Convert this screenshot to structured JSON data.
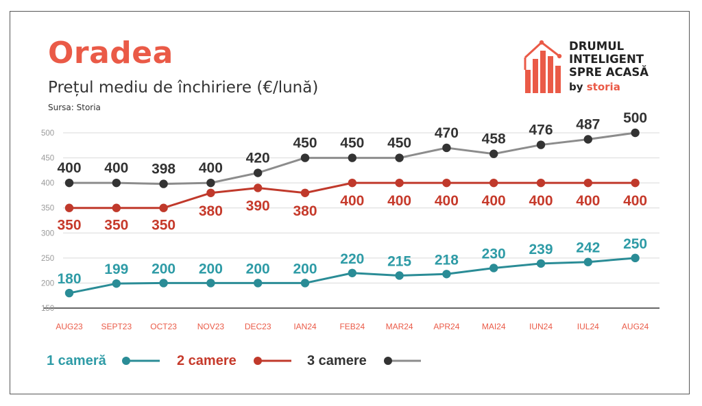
{
  "header": {
    "title": "Oradea",
    "subtitle": "Prețul mediu de închiriere (€/lună)",
    "source": "Sursa: Storia"
  },
  "logo": {
    "line1": "DRUMUL",
    "line2": "INTELIGENT",
    "line3": "SPRE ACASĂ",
    "by": "by",
    "brand": "storia",
    "icon": "house-bars-icon"
  },
  "colors": {
    "accent": "#ea5a47",
    "series_1": "#2a8c96",
    "series_2": "#c0392b",
    "series_3": "#8c8c8c",
    "label_1": "#2e9ba6",
    "label_2": "#c63a2b",
    "label_3": "#333333"
  },
  "chart_data": {
    "type": "line",
    "title": "Prețul mediu de închiriere (€/lună)",
    "xlabel": "",
    "ylabel": "",
    "categories": [
      "AUG23",
      "SEPT23",
      "OCT23",
      "NOV23",
      "DEC23",
      "IAN24",
      "FEB24",
      "MAR24",
      "APR24",
      "MAI24",
      "IUN24",
      "IUL24",
      "AUG24"
    ],
    "yticks": [
      150,
      200,
      250,
      300,
      350,
      400,
      450,
      500
    ],
    "ylim": [
      150,
      500
    ],
    "grid": true,
    "legend": "bottom-left",
    "series": [
      {
        "name": "1 cameră",
        "values": [
          180,
          199,
          200,
          200,
          200,
          200,
          220,
          215,
          218,
          230,
          239,
          242,
          250
        ]
      },
      {
        "name": "2 camere",
        "values": [
          350,
          350,
          350,
          380,
          390,
          380,
          400,
          400,
          400,
          400,
          400,
          400,
          400
        ]
      },
      {
        "name": "3 camere",
        "values": [
          400,
          400,
          398,
          400,
          420,
          450,
          450,
          450,
          470,
          458,
          476,
          487,
          500
        ]
      }
    ]
  }
}
